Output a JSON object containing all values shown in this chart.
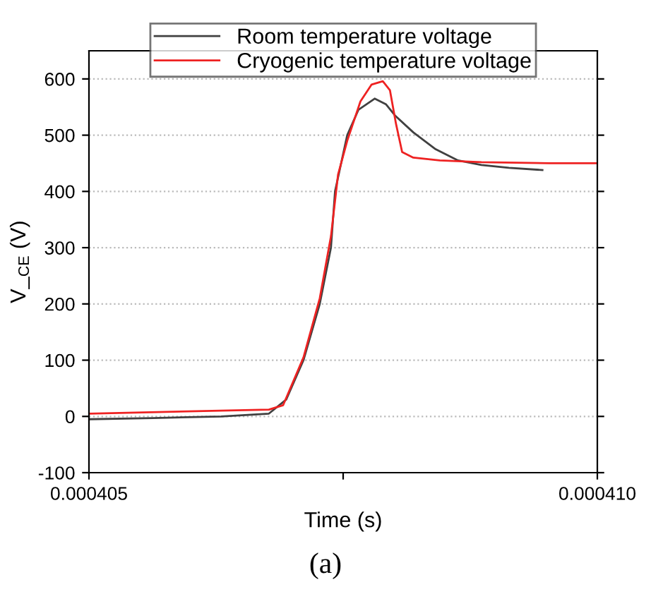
{
  "chart_data": {
    "type": "line",
    "xlabel": "Time (s)",
    "ylabel": "V_$_{CE}$ (V)",
    "annotations": [
      "(a)"
    ],
    "xlim": [
      0.000405,
      0.00041
    ],
    "xticks": [
      {
        "value": 0.000405,
        "label": "0.000405"
      },
      {
        "value": 0.0004075,
        "label": null
      },
      {
        "value": 0.00041,
        "label": "0.000410"
      }
    ],
    "ylim": [
      -100,
      650
    ],
    "yticks": [
      -100,
      0,
      100,
      200,
      300,
      400,
      500,
      600
    ],
    "grid": "y",
    "legend": "top",
    "line_style": "solid",
    "marker": "none",
    "series": [
      {
        "name": "Room temperature voltage",
        "color": "#404040",
        "x": [
          0.000405,
          0.00040563,
          0.0004063,
          0.00040677,
          0.00040694,
          0.00040711,
          0.00040727,
          0.00040738,
          0.00040742,
          0.00040754,
          0.00040765,
          0.00040781,
          0.00040792,
          0.00040801,
          0.00040819,
          0.00040841,
          0.00040863,
          0.00040886,
          0.00040913,
          0.00040946
        ],
        "values": [
          -5,
          -3,
          0,
          5,
          30,
          100,
          200,
          300,
          400,
          500,
          545,
          565,
          555,
          535,
          505,
          475,
          455,
          447,
          442,
          438
        ]
      },
      {
        "name": "Cryogenic temperature voltage",
        "color": "#ee2222",
        "x": [
          0.000405,
          0.00040677,
          0.00040691,
          0.00040711,
          0.00040727,
          0.00040738,
          0.00040745,
          0.00040754,
          0.00040767,
          0.00040778,
          0.00040789,
          0.00040796,
          0.00040802,
          0.00040808,
          0.00040819,
          0.00040845,
          0.00040886,
          0.00040953,
          0.00041
        ],
        "values": [
          5,
          12,
          20,
          105,
          210,
          320,
          430,
          490,
          560,
          590,
          596,
          580,
          520,
          470,
          460,
          455,
          452,
          450,
          450
        ]
      }
    ]
  }
}
